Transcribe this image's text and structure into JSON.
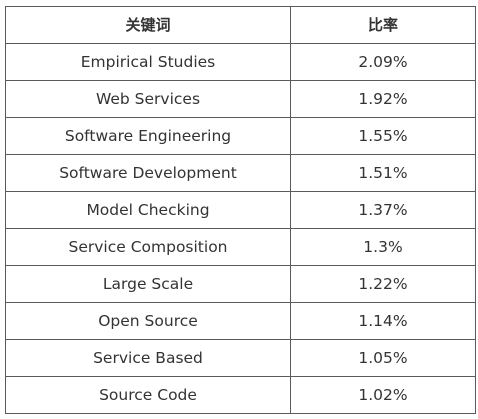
{
  "table": {
    "headers": [
      "关键词",
      "比率"
    ],
    "rows": [
      {
        "keyword": "Empirical Studies",
        "ratio": "2.09%"
      },
      {
        "keyword": "Web Services",
        "ratio": "1.92%"
      },
      {
        "keyword": "Software Engineering",
        "ratio": "1.55%"
      },
      {
        "keyword": "Software Development",
        "ratio": "1.51%"
      },
      {
        "keyword": "Model Checking",
        "ratio": "1.37%"
      },
      {
        "keyword": "Service Composition",
        "ratio": "1.3%"
      },
      {
        "keyword": "Large Scale",
        "ratio": "1.22%"
      },
      {
        "keyword": "Open Source",
        "ratio": "1.14%"
      },
      {
        "keyword": "Service Based",
        "ratio": "1.05%"
      },
      {
        "keyword": "Source Code",
        "ratio": "1.02%"
      }
    ]
  }
}
